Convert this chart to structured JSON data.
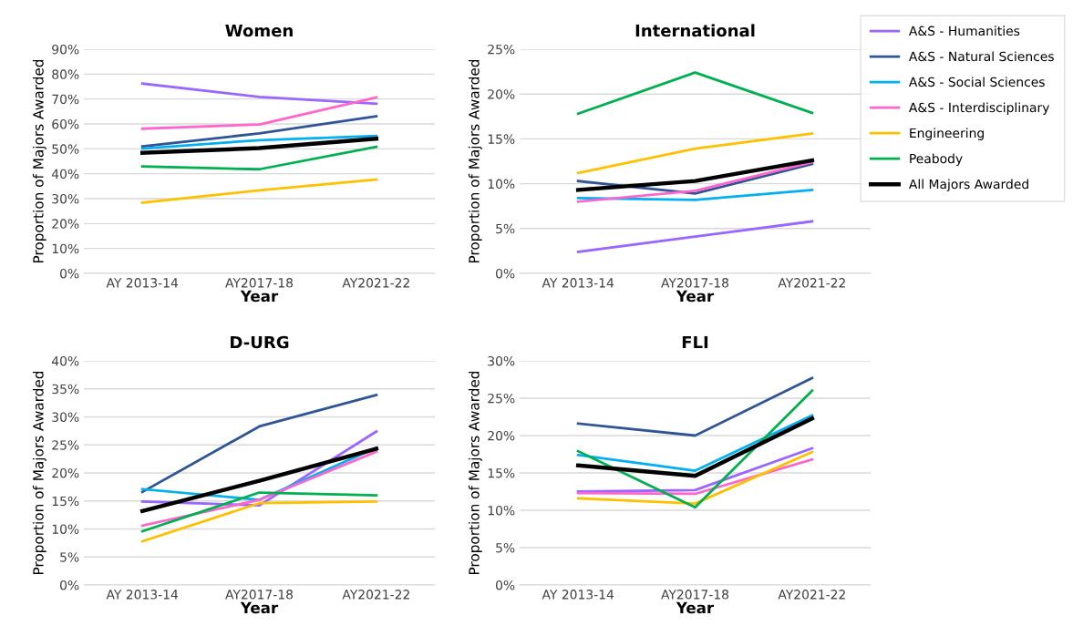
{
  "chart_data": [
    {
      "type": "line",
      "title": "Women",
      "xlabel": "Year",
      "ylabel": "Proportion of Majors Awarded",
      "categories": [
        "AY 2013-14",
        "AY2017-18",
        "AY2021-22"
      ],
      "ylim": [
        0,
        90
      ],
      "yticks": [
        {
          "value": 0,
          "label": "0%"
        },
        {
          "value": 10,
          "label": "10%"
        },
        {
          "value": 20,
          "label": "20%"
        },
        {
          "value": 30,
          "label": "30%"
        },
        {
          "value": 40,
          "label": "40%"
        },
        {
          "value": 50,
          "label": "50%"
        },
        {
          "value": 60,
          "label": "60%"
        },
        {
          "value": 70,
          "label": "70%"
        },
        {
          "value": 80,
          "label": "80%"
        },
        {
          "value": 90,
          "label": "90%"
        }
      ],
      "grid": "y",
      "legend": "right",
      "marker": "none",
      "series": [
        {
          "name": "A&S - Humanities",
          "color": "#9966ff",
          "values": [
            76.2,
            70.8,
            68.1
          ]
        },
        {
          "name": "A&S - Natural Sciences",
          "color": "#2f5597",
          "values": [
            51.0,
            56.2,
            63.1
          ]
        },
        {
          "name": "A&S - Social Sciences",
          "color": "#00b0f0",
          "values": [
            50.1,
            53.5,
            55.2
          ]
        },
        {
          "name": "A&S - Interdisciplinary",
          "color": "#ff66cc",
          "values": [
            58.1,
            59.8,
            70.6
          ]
        },
        {
          "name": "Engineering",
          "color": "#ffc000",
          "values": [
            28.4,
            33.3,
            37.7
          ]
        },
        {
          "name": "Peabody",
          "color": "#00b050",
          "values": [
            42.9,
            41.8,
            50.8
          ]
        },
        {
          "name": "All Majors Awarded",
          "color": "#000000",
          "values": [
            48.4,
            50.3,
            54.1
          ]
        }
      ]
    },
    {
      "type": "line",
      "title": "International",
      "xlabel": "Year",
      "ylabel": "Proportion of Majors Awarded",
      "categories": [
        "AY 2013-14",
        "AY2017-18",
        "AY2021-22"
      ],
      "ylim": [
        0,
        25
      ],
      "yticks": [
        {
          "value": 0,
          "label": "0%"
        },
        {
          "value": 5,
          "label": "5%"
        },
        {
          "value": 10,
          "label": "10%"
        },
        {
          "value": 15,
          "label": "15%"
        },
        {
          "value": 20,
          "label": "20%"
        },
        {
          "value": 25,
          "label": "25%"
        }
      ],
      "grid": "y",
      "marker": "none",
      "series": [
        {
          "color": "#9966ff",
          "values": [
            2.4,
            4.1,
            5.8
          ]
        },
        {
          "color": "#2f5597",
          "values": [
            10.3,
            8.9,
            12.2
          ]
        },
        {
          "color": "#00b0f0",
          "values": [
            8.4,
            8.2,
            9.3
          ]
        },
        {
          "color": "#ff66cc",
          "values": [
            8.0,
            9.2,
            12.4
          ]
        },
        {
          "color": "#ffc000",
          "values": [
            11.2,
            13.9,
            15.6
          ]
        },
        {
          "color": "#00b050",
          "values": [
            17.8,
            22.4,
            17.9
          ]
        },
        {
          "color": "#000000",
          "values": [
            9.3,
            10.3,
            12.6
          ]
        }
      ]
    },
    {
      "type": "line",
      "title": "D-URG",
      "xlabel": "Year",
      "ylabel": "Proportion of Majors Awarded",
      "categories": [
        "AY 2013-14",
        "AY2017-18",
        "AY2021-22"
      ],
      "ylim": [
        0,
        40
      ],
      "yticks": [
        {
          "value": 0,
          "label": "0%"
        },
        {
          "value": 5,
          "label": "5%"
        },
        {
          "value": 10,
          "label": "10%"
        },
        {
          "value": 15,
          "label": "15%"
        },
        {
          "value": 20,
          "label": "20%"
        },
        {
          "value": 25,
          "label": "25%"
        },
        {
          "value": 30,
          "label": "30%"
        },
        {
          "value": 35,
          "label": "35%"
        },
        {
          "value": 40,
          "label": "40%"
        }
      ],
      "grid": "y",
      "marker": "none",
      "series": [
        {
          "color": "#9966ff",
          "values": [
            14.9,
            14.2,
            27.4
          ]
        },
        {
          "color": "#2f5597",
          "values": [
            16.6,
            28.3,
            33.9
          ]
        },
        {
          "color": "#00b0f0",
          "values": [
            17.1,
            15.2,
            24.5
          ]
        },
        {
          "color": "#ff66cc",
          "values": [
            10.6,
            15.2,
            23.8
          ]
        },
        {
          "color": "#ffc000",
          "values": [
            7.8,
            14.6,
            14.9
          ]
        },
        {
          "color": "#00b050",
          "values": [
            9.6,
            16.5,
            16.0
          ]
        },
        {
          "color": "#000000",
          "values": [
            13.2,
            18.6,
            24.3
          ]
        }
      ]
    },
    {
      "type": "line",
      "title": "FLI",
      "xlabel": "Year",
      "ylabel": "Proportion of Majors Awarded",
      "categories": [
        "AY 2013-14",
        "AY2017-18",
        "AY2021-22"
      ],
      "ylim": [
        0,
        30
      ],
      "yticks": [
        {
          "value": 0,
          "label": "0%"
        },
        {
          "value": 5,
          "label": "5%"
        },
        {
          "value": 10,
          "label": "10%"
        },
        {
          "value": 15,
          "label": "15%"
        },
        {
          "value": 20,
          "label": "20%"
        },
        {
          "value": 25,
          "label": "25%"
        },
        {
          "value": 30,
          "label": "30%"
        }
      ],
      "grid": "y",
      "marker": "none",
      "series": [
        {
          "color": "#9966ff",
          "values": [
            12.5,
            12.7,
            18.3
          ]
        },
        {
          "color": "#2f5597",
          "values": [
            21.6,
            20.0,
            27.7
          ]
        },
        {
          "color": "#00b0f0",
          "values": [
            17.4,
            15.3,
            22.7
          ]
        },
        {
          "color": "#ff66cc",
          "values": [
            12.3,
            12.2,
            16.8
          ]
        },
        {
          "color": "#ffc000",
          "values": [
            11.6,
            10.9,
            17.8
          ]
        },
        {
          "color": "#00b050",
          "values": [
            17.9,
            10.4,
            26.0
          ]
        },
        {
          "color": "#000000",
          "values": [
            16.0,
            14.6,
            22.3
          ]
        }
      ]
    }
  ]
}
